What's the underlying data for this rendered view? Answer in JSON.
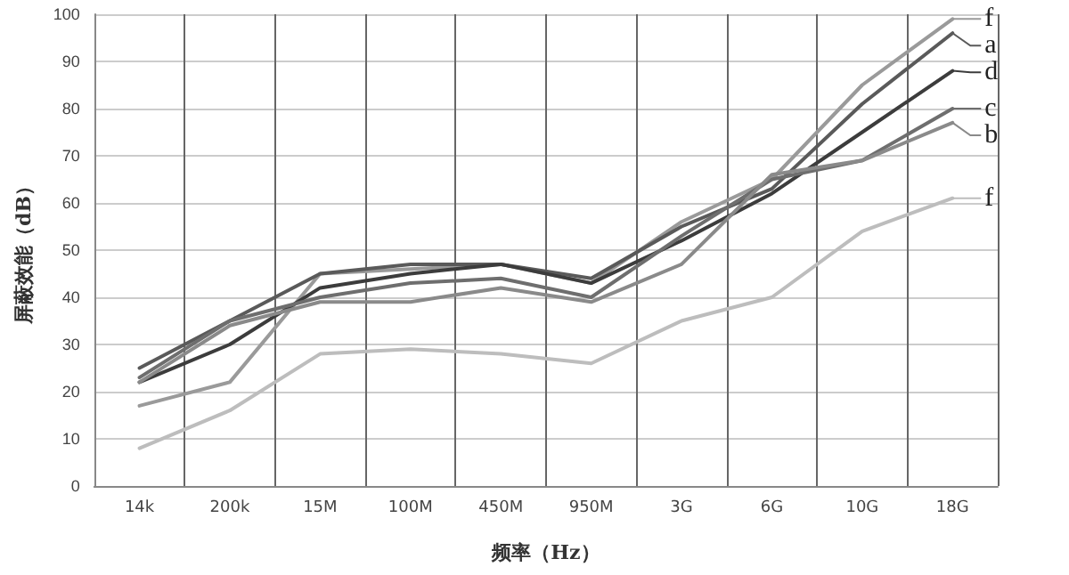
{
  "chart_data": {
    "type": "line",
    "xlabel": "频率（Hz）",
    "ylabel": "屏蔽效能（dB）",
    "categories": [
      "14k",
      "200k",
      "15M",
      "100M",
      "450M",
      "950M",
      "3G",
      "6G",
      "10G",
      "18G"
    ],
    "ylim": [
      0,
      100
    ],
    "yticks": [
      0,
      10,
      20,
      30,
      40,
      50,
      60,
      70,
      80,
      90,
      100
    ],
    "grid": true,
    "legend": "right",
    "marker": "none",
    "line_style": "solid",
    "series": [
      {
        "name": "f",
        "color": "#9a9a9a",
        "values": [
          17,
          22,
          45,
          46,
          47,
          43,
          56,
          65,
          85,
          99
        ]
      },
      {
        "name": "a",
        "color": "#5a5a5a",
        "values": [
          25,
          35,
          45,
          47,
          47,
          44,
          55,
          63,
          81,
          96
        ]
      },
      {
        "name": "d",
        "color": "#3c3c3c",
        "values": [
          22,
          30,
          42,
          45,
          47,
          43,
          52,
          62,
          75,
          88
        ]
      },
      {
        "name": "c",
        "color": "#6e6e6e",
        "values": [
          23,
          35,
          40,
          43,
          44,
          40,
          53,
          65,
          69,
          80
        ]
      },
      {
        "name": "b",
        "color": "#8a8a8a",
        "values": [
          22,
          34,
          39,
          39,
          42,
          39,
          47,
          66,
          69,
          77
        ]
      },
      {
        "name": "f",
        "color": "#bdbdbd",
        "values": [
          8,
          16,
          28,
          29,
          28,
          26,
          35,
          40,
          54,
          61
        ]
      }
    ]
  }
}
